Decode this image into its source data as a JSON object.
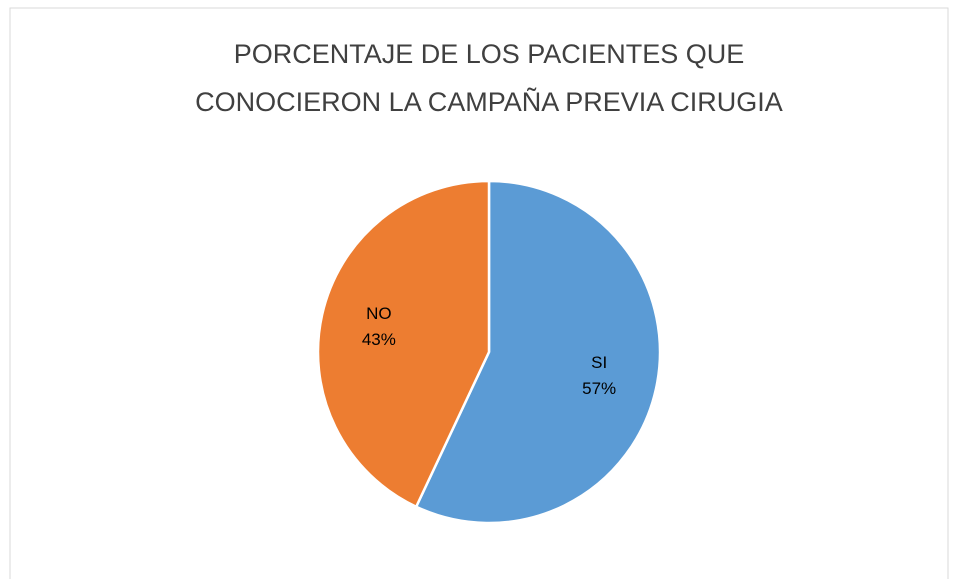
{
  "chart_data": {
    "type": "pie",
    "title": [
      "PORCENTAJE DE LOS PACIENTES QUE",
      "CONOCIERON LA CAMPAÑA PREVIA CIRUGIA"
    ],
    "categories": [
      "SI",
      "NO"
    ],
    "values": [
      57,
      43
    ],
    "value_labels": [
      "57%",
      "43%"
    ],
    "colors": [
      "#5b9bd5",
      "#ed7d31"
    ]
  }
}
